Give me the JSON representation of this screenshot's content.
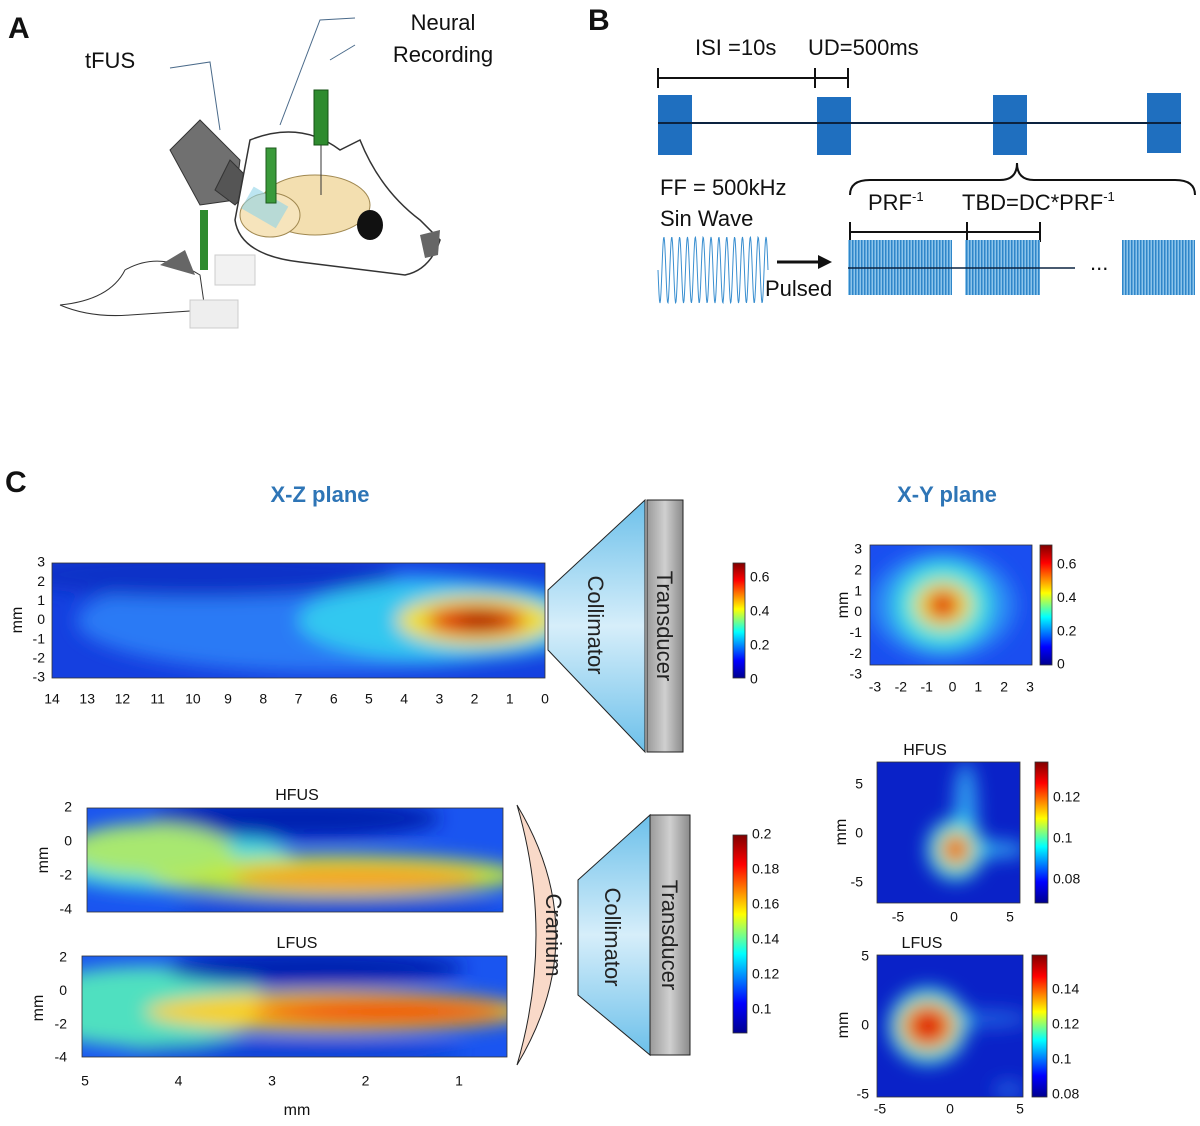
{
  "panel_a": {
    "label": "A",
    "tfus": "tFUS",
    "neural_recording": [
      "Neural",
      "Recording"
    ]
  },
  "panel_b": {
    "label": "B",
    "isi": "ISI =10s",
    "ud": "UD=500ms",
    "ff": "FF = 500kHz",
    "sin_wave": "Sin Wave",
    "pulsed": "Pulsed",
    "prf": "PRF",
    "prf_exp": "-1",
    "tbd": "TBD=DC*PRF",
    "tbd_exp": "-1",
    "ellipsis": "..."
  },
  "panel_c": {
    "label": "C",
    "xz_title": "X-Z plane",
    "xy_title": "X-Y plane",
    "collimator": "Collimator",
    "transducer": "Transducer",
    "cranium": "Cranium",
    "xz_free": {
      "ylabel": "mm",
      "yticks": [
        3,
        2,
        1,
        0,
        -1,
        -2,
        -3
      ],
      "xticks": [
        14,
        13,
        12,
        11,
        10,
        9,
        8,
        7,
        6,
        5,
        4,
        3,
        2,
        1,
        0
      ],
      "colorbar_ticks": [
        0.6,
        0.4,
        0.2,
        0
      ]
    },
    "xz_hfus": {
      "title": "HFUS",
      "ylabel": "mm",
      "yticks": [
        2,
        0,
        -2,
        -4
      ]
    },
    "xz_lfus": {
      "title": "LFUS",
      "ylabel": "mm",
      "yticks": [
        2,
        0,
        -2,
        -4
      ],
      "xticks": [
        5,
        4,
        3,
        2,
        1
      ],
      "xlabel": "mm"
    },
    "xz_skull_colorbar_ticks": [
      0.2,
      0.18,
      0.16,
      0.14,
      0.12,
      0.1
    ],
    "xy_free": {
      "ylabel": "mm",
      "yticks": [
        3,
        2,
        1,
        0,
        -1,
        -2,
        -3
      ],
      "xticks": [
        -3,
        -2,
        -1,
        0,
        1,
        2,
        3
      ],
      "colorbar_ticks": [
        0.6,
        0.4,
        0.2,
        0
      ]
    },
    "xy_hfus": {
      "title": "HFUS",
      "ylabel": "mm",
      "yticks": [
        5,
        0,
        -5
      ],
      "xticks": [
        -5,
        0,
        5
      ],
      "colorbar_ticks": [
        0.12,
        0.1,
        0.08
      ]
    },
    "xy_lfus": {
      "title": "LFUS",
      "ylabel": "mm",
      "yticks": [
        5,
        0,
        -5
      ],
      "xticks": [
        -5,
        0,
        5
      ],
      "colorbar_ticks": [
        0.14,
        0.12,
        0.1,
        0.08
      ]
    }
  }
}
